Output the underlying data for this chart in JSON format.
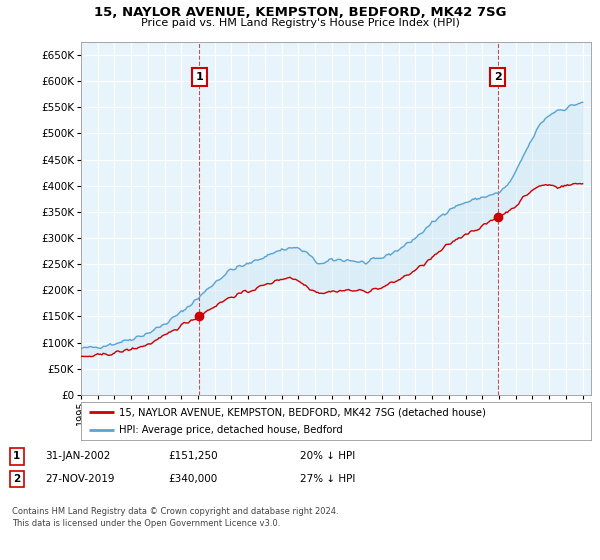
{
  "title": "15, NAYLOR AVENUE, KEMPSTON, BEDFORD, MK42 7SG",
  "subtitle": "Price paid vs. HM Land Registry's House Price Index (HPI)",
  "yticks": [
    0,
    50000,
    100000,
    150000,
    200000,
    250000,
    300000,
    350000,
    400000,
    450000,
    500000,
    550000,
    600000,
    650000
  ],
  "ylim": [
    0,
    675000
  ],
  "xlim_start": 1995.0,
  "xlim_end": 2025.5,
  "hpi_color": "#5ba3d0",
  "hpi_fill": "#d0e8f5",
  "price_color": "#cc0000",
  "marker1_date": 2002.08,
  "marker1_price": 151250,
  "marker2_date": 2019.92,
  "marker2_price": 340000,
  "vline_color": "#cc0000",
  "legend_line1": "15, NAYLOR AVENUE, KEMPSTON, BEDFORD, MK42 7SG (detached house)",
  "legend_line2": "HPI: Average price, detached house, Bedford",
  "note1_label": "1",
  "note1_date": "31-JAN-2002",
  "note1_price": "£151,250",
  "note1_pct": "20% ↓ HPI",
  "note2_label": "2",
  "note2_date": "27-NOV-2019",
  "note2_price": "£340,000",
  "note2_pct": "27% ↓ HPI",
  "footer": "Contains HM Land Registry data © Crown copyright and database right 2024.\nThis data is licensed under the Open Government Licence v3.0.",
  "background_color": "#ffffff",
  "plot_bg_color": "#e8f4fb",
  "grid_color": "#ffffff"
}
